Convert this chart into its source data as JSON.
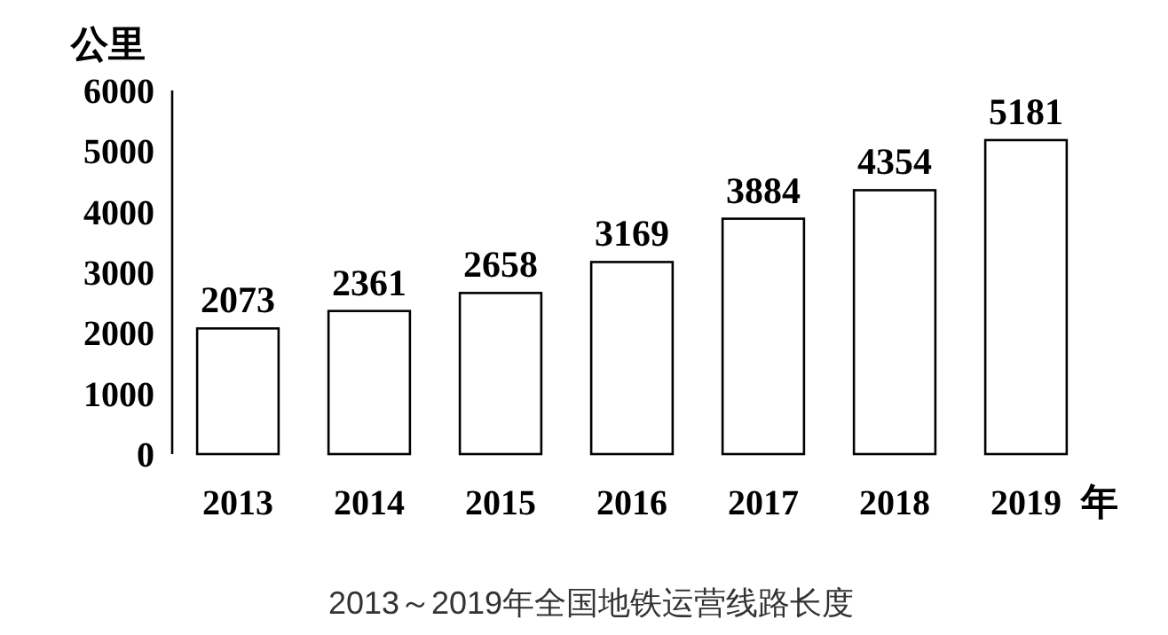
{
  "chart_data": {
    "type": "bar",
    "title": "2013～2019年全国地铁运营线路长度",
    "ylabel": "公里",
    "xlabel": "年",
    "categories": [
      "2013",
      "2014",
      "2015",
      "2016",
      "2017",
      "2018",
      "2019"
    ],
    "values": [
      2073,
      2361,
      2658,
      3169,
      3884,
      4354,
      5181
    ],
    "color": "#ffffff",
    "ylim": [
      0,
      6000
    ],
    "yticks": [
      0,
      1000,
      2000,
      3000,
      4000,
      5000,
      6000
    ],
    "data_labels": true,
    "grid": false
  }
}
